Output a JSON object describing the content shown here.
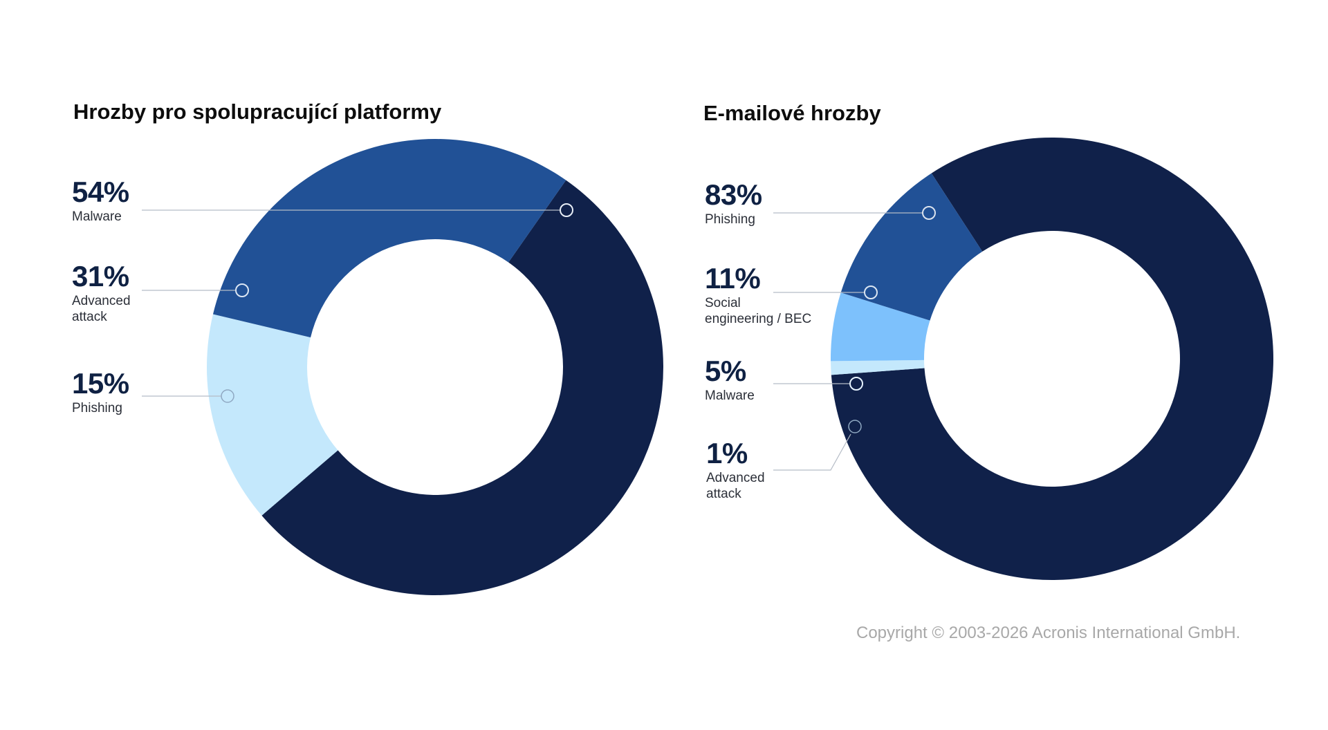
{
  "chart_data": [
    {
      "type": "pie",
      "title": "Hrozby pro spolupracující platformy",
      "slices": [
        {
          "label": "Malware",
          "value": 54,
          "display": "54%",
          "color": "#10214a"
        },
        {
          "label": "Advanced attack",
          "value": 31,
          "display": "31%",
          "color": "#215196"
        },
        {
          "label": "Phishing",
          "value": 15,
          "display": "15%",
          "color": "#c4e8fc"
        }
      ]
    },
    {
      "type": "pie",
      "title": "E-mailové hrozby",
      "slices": [
        {
          "label": "Phishing",
          "value": 83,
          "display": "83%",
          "color": "#10214a"
        },
        {
          "label": "Social engineering / BEC",
          "label_lines": [
            "Social",
            "engineering / BEC"
          ],
          "value": 11,
          "display": "11%",
          "color": "#215196"
        },
        {
          "label": "Malware",
          "value": 5,
          "display": "5%",
          "color": "#7dc1fc"
        },
        {
          "label": "Advanced attack",
          "label_lines": [
            "Advanced",
            "attack"
          ],
          "value": 1,
          "display": "1%",
          "color": "#c4e8fc"
        }
      ]
    }
  ],
  "left_callouts": [
    {
      "pct": "54%",
      "label_lines": [
        "Malware"
      ]
    },
    {
      "pct": "31%",
      "label_lines": [
        "Advanced",
        "attack"
      ]
    },
    {
      "pct": "15%",
      "label_lines": [
        "Phishing"
      ]
    }
  ],
  "right_callouts": [
    {
      "pct": "83%",
      "label_lines": [
        "Phishing"
      ]
    },
    {
      "pct": "11%",
      "label_lines": [
        "Social",
        "engineering / BEC"
      ]
    },
    {
      "pct": "5%",
      "label_lines": [
        "Malware"
      ]
    },
    {
      "pct": "1%",
      "label_lines": [
        "Advanced",
        "attack"
      ]
    }
  ],
  "footer": {
    "copyright": "Copyright © 2003-2026 Acronis International GmbH."
  }
}
